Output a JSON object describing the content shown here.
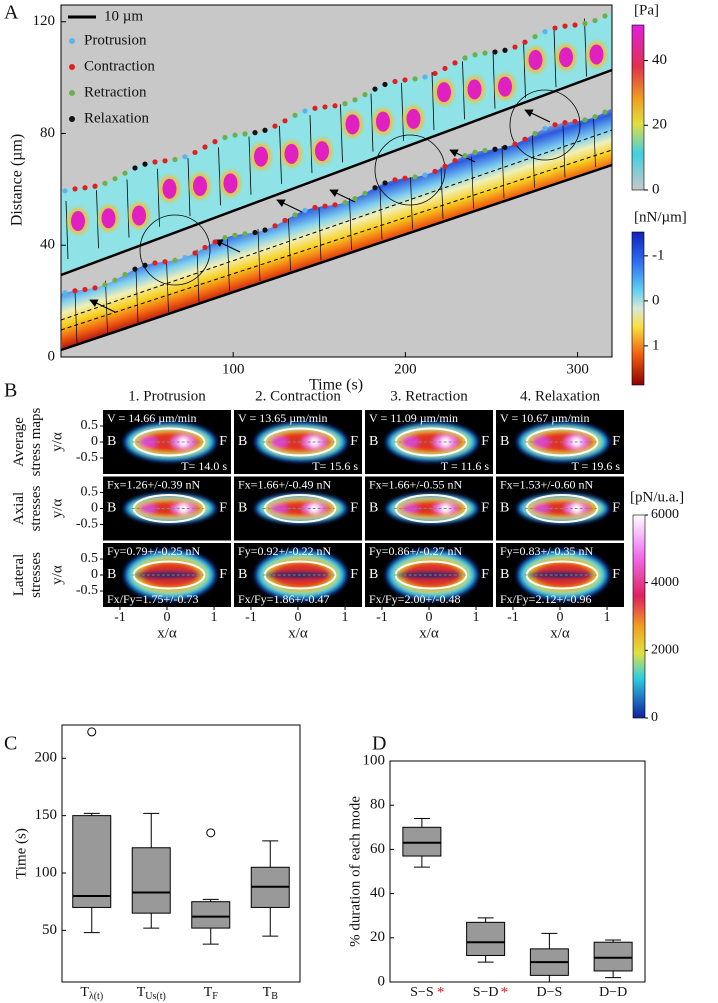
{
  "chart_data": [
    {
      "type": "kymograph",
      "label": "A",
      "xlabel": "Time (s)",
      "ylabel": "Distance (µm)",
      "xlim": [
        0,
        320
      ],
      "ylim": [
        0,
        126
      ],
      "xticks": [
        100,
        200,
        300
      ],
      "yticks": [
        0,
        40,
        80,
        120
      ],
      "scale_bar": "10 µm",
      "legend": [
        {
          "name": "Protrusion",
          "color": "#5ab4ea"
        },
        {
          "name": "Contraction",
          "color": "#e02020"
        },
        {
          "name": "Retraction",
          "color": "#6ab04c"
        },
        {
          "name": "Relaxation",
          "color": "#111111"
        }
      ],
      "colorbars": [
        {
          "label": "[Pa]",
          "lim": [
            51,
            0
          ],
          "ticks": [
            0,
            20,
            40
          ]
        },
        {
          "label": "[nN/µm]",
          "lim": [
            -1.53,
            1.87
          ],
          "ticks": [
            -1,
            0,
            1
          ]
        }
      ]
    },
    {
      "type": "stress-map",
      "label": "B",
      "columns": [
        "1. Protrusion",
        "2. Contraction",
        "3. Retraction",
        "4. Relaxation"
      ],
      "rows": [
        "Average stress maps",
        "Axial stresses",
        "Lateral stresses"
      ],
      "xlabel": "x/α",
      "ylabel": "y/α",
      "xlim": [
        -1.36,
        1.36
      ],
      "ylim": [
        -1,
        1
      ],
      "xticks": [
        -1,
        0,
        1
      ],
      "yticks": [
        -0.5,
        0,
        0.5
      ],
      "back": "B",
      "front": "F",
      "velocity": [
        "V = 14.66 µm/min",
        "V = 13.65 µm/min",
        "V = 11.09 µm/min",
        "V = 10.67 µm/min"
      ],
      "period": [
        "T= 14.0 s",
        "T= 15.6 s",
        "T = 11.6 s",
        "T = 19.6 s"
      ],
      "axial_force": [
        "Fx=1.26+/-0.39 nN",
        "Fx=1.66+/-0.49 nN",
        "Fx=1.66+/-0.55 nN",
        "Fx=1.53+/-0.60 nN"
      ],
      "lateral_force": [
        "Fy=0.79+/-0.25 nN",
        "Fy=0.92+/-0.22 nN",
        "Fy=0.86+/-0.27 nN",
        "Fy=0.83+/-0.35 nN"
      ],
      "force_ratio": [
        "Fx/Fy=1.75+/-0.73",
        "Fx/Fy=1.86+/-0.47",
        "Fx/Fy=2.00+/-0.48",
        "Fx/Fy=2.12+/-0.96"
      ],
      "colorbar": {
        "label": "[pN/u.a.]",
        "lim": [
          0,
          6000
        ],
        "ticks": [
          0,
          2000,
          4000,
          6000
        ]
      }
    },
    {
      "type": "box",
      "label": "C",
      "ylabel": "Time (s)",
      "categories": [
        "Tλ(t)",
        "TUs(t)",
        "TF",
        "TB"
      ],
      "ylim": [
        5,
        229
      ],
      "yticks": [
        50,
        100,
        150,
        200
      ],
      "color": "#999999",
      "min": [
        48,
        52,
        38,
        45
      ],
      "q1": [
        70,
        65,
        52,
        70
      ],
      "median": [
        80,
        83,
        62,
        88
      ],
      "q3": [
        150,
        122,
        75,
        105
      ],
      "max": [
        152,
        152,
        77,
        128
      ],
      "outliers": [
        [
          223
        ],
        [],
        [
          135
        ],
        []
      ]
    },
    {
      "type": "box",
      "label": "D",
      "ylabel": "% duration of each mode",
      "categories": [
        "S−S",
        "S−D",
        "D−S",
        "D−D"
      ],
      "annotations": [
        "*",
        "*",
        null,
        null
      ],
      "annotation_color": "#e02020",
      "ylim": [
        0,
        100
      ],
      "yticks": [
        0,
        20,
        40,
        60,
        80,
        100
      ],
      "color": "#999999",
      "min": [
        52,
        9,
        0,
        2
      ],
      "q1": [
        57,
        12,
        3,
        5
      ],
      "median": [
        63,
        18,
        9,
        11
      ],
      "q3": [
        70,
        27,
        15,
        18
      ],
      "max": [
        74,
        29,
        22,
        19
      ],
      "outliers": [
        [],
        [],
        [],
        []
      ]
    }
  ]
}
